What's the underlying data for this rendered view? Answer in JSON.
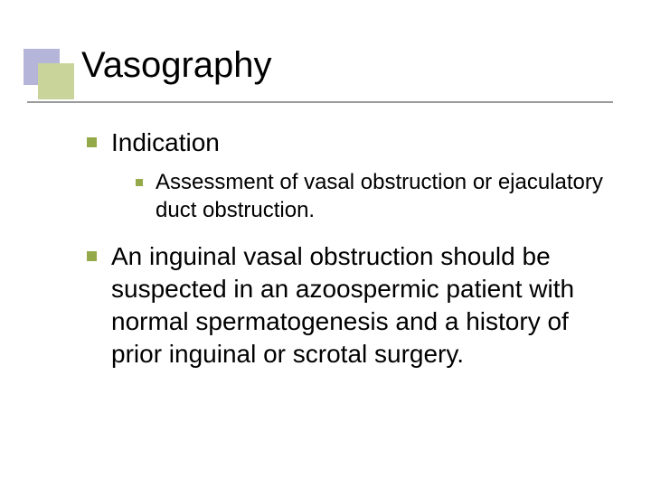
{
  "colors": {
    "bullet": "#94aa4a",
    "deco_back": "#b5b5d9",
    "deco_front": "#c9d49a",
    "underline": "#9a9a9a",
    "text": "#000000",
    "background": "#ffffff"
  },
  "typography": {
    "title_fontsize": 40,
    "l1_fontsize": 28,
    "l2_fontsize": 24,
    "font_family": "Verdana, Geneva, sans-serif"
  },
  "title": "Vasography",
  "bullets": {
    "l1a": "Indication",
    "l2a": "Assessment of vasal obstruction or ejaculatory duct obstruction.",
    "l1b": "An inguinal vasal obstruction should be suspected in an azoospermic patient with normal spermatogenesis and a history of prior inguinal or scrotal surgery."
  }
}
